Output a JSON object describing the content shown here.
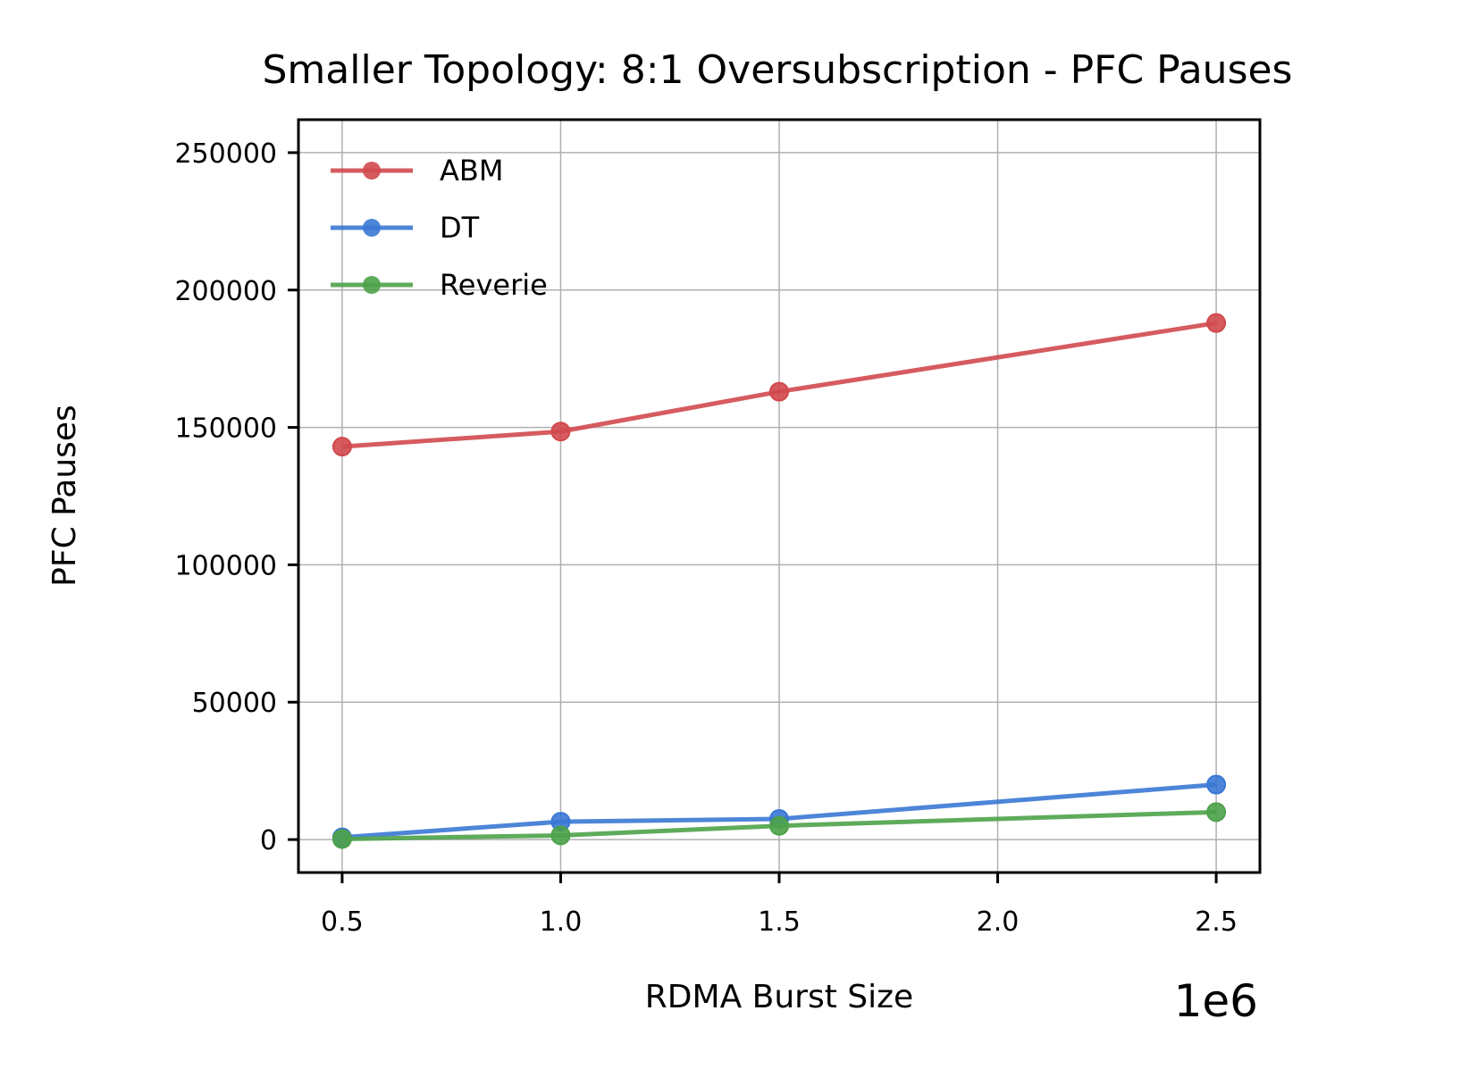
{
  "chart_data": {
    "type": "line",
    "title": "Smaller Topology: 8:1 Oversubscription - PFC Pauses",
    "xlabel": "RDMA Burst Size",
    "ylabel": "PFC Pauses",
    "x_offset_label": "1e6",
    "x": [
      0.5,
      1.0,
      1.5,
      2.5
    ],
    "xlim": [
      0.4,
      2.6
    ],
    "ylim": [
      -12000,
      262000
    ],
    "xticks": [
      0.5,
      1.0,
      1.5,
      2.0,
      2.5
    ],
    "xtick_labels": [
      "0.5",
      "1.0",
      "1.5",
      "2.0",
      "2.5"
    ],
    "yticks": [
      0,
      50000,
      100000,
      150000,
      200000,
      250000
    ],
    "ytick_labels": [
      "0",
      "50000",
      "100000",
      "150000",
      "200000",
      "250000"
    ],
    "grid": true,
    "legend_position": "top-left",
    "series": [
      {
        "name": "ABM",
        "color": "#d1494e",
        "values": [
          143000,
          148500,
          163000,
          188000
        ]
      },
      {
        "name": "DT",
        "color": "#3a78d4",
        "values": [
          800,
          6500,
          7500,
          20000
        ]
      },
      {
        "name": "Reverie",
        "color": "#4ea24a",
        "values": [
          200,
          1500,
          5000,
          10000
        ]
      }
    ]
  }
}
